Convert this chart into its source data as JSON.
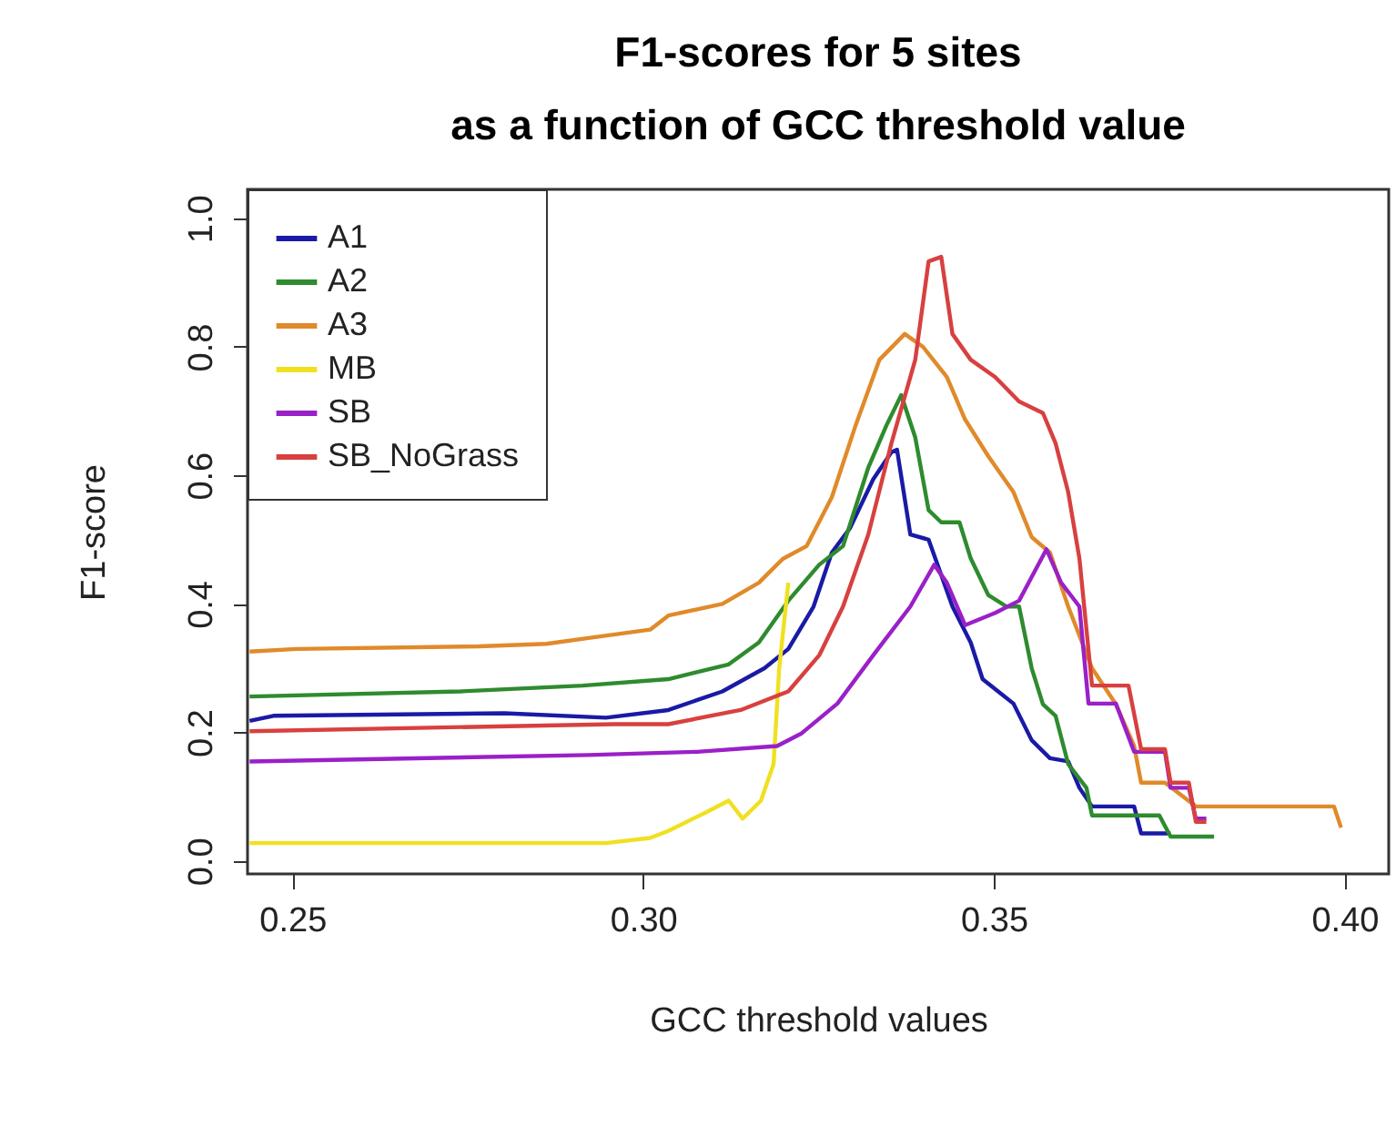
{
  "chart_data": {
    "type": "line",
    "title": "F1-scores for 5 sites\nas a function of GCC threshold value",
    "xlabel": "GCC threshold values",
    "ylabel": "F1-score",
    "xlim": [
      0.2436,
      0.4063
    ],
    "ylim": [
      -0.02,
      1.045
    ],
    "xticks": [
      0.25,
      {
        "value": 0.3,
        "label": "0.30"
      },
      0.35,
      {
        "value": 0.4,
        "label": "0.40"
      }
    ],
    "yticks": [
      {
        "value": 0,
        "label": "0.0"
      },
      0.2,
      0.4,
      0.6,
      0.8,
      {
        "value": 1,
        "label": "1.0"
      }
    ],
    "grid": false,
    "legend": "top left",
    "line_style": "solid",
    "marker": "none",
    "series": [
      {
        "name": "A1",
        "color": "#1a1aa6",
        "x": [
          0.2439,
          0.2473,
          0.2802,
          0.2947,
          0.3036,
          0.3113,
          0.3173,
          0.3207,
          0.3243,
          0.3269,
          0.3295,
          0.3328,
          0.3354,
          0.3362,
          0.3381,
          0.3407,
          0.3441,
          0.3467,
          0.3484,
          0.3528,
          0.3554,
          0.358,
          0.3606,
          0.3622,
          0.364,
          0.37,
          0.371,
          0.3752
        ],
        "values": [
          0.218,
          0.226,
          0.23,
          0.223,
          0.235,
          0.264,
          0.3,
          0.33,
          0.396,
          0.48,
          0.518,
          0.594,
          0.636,
          0.64,
          0.508,
          0.5,
          0.396,
          0.34,
          0.283,
          0.245,
          0.188,
          0.16,
          0.155,
          0.114,
          0.085,
          0.085,
          0.043,
          0.043
        ]
      },
      {
        "name": "A2",
        "color": "#2e8b2e",
        "x": [
          0.2439,
          0.274,
          0.2914,
          0.3036,
          0.3122,
          0.3165,
          0.3207,
          0.3251,
          0.3285,
          0.3321,
          0.3347,
          0.3368,
          0.3388,
          0.3407,
          0.3425,
          0.3451,
          0.3467,
          0.3492,
          0.3518,
          0.3536,
          0.3554,
          0.357,
          0.3588,
          0.3606,
          0.3632,
          0.364,
          0.3736,
          0.3752,
          0.3814
        ],
        "values": [
          0.256,
          0.264,
          0.273,
          0.283,
          0.306,
          0.34,
          0.405,
          0.461,
          0.49,
          0.612,
          0.678,
          0.725,
          0.659,
          0.546,
          0.527,
          0.527,
          0.471,
          0.414,
          0.396,
          0.396,
          0.3,
          0.244,
          0.226,
          0.151,
          0.114,
          0.071,
          0.071,
          0.038,
          0.038
        ]
      },
      {
        "name": "A3",
        "color": "#e08a2a",
        "x": [
          0.2439,
          0.2506,
          0.2766,
          0.2862,
          0.2922,
          0.301,
          0.3036,
          0.3113,
          0.3165,
          0.3199,
          0.3233,
          0.3269,
          0.3303,
          0.3337,
          0.3373,
          0.3399,
          0.3433,
          0.3459,
          0.3492,
          0.3528,
          0.3554,
          0.358,
          0.3606,
          0.364,
          0.3674,
          0.37,
          0.371,
          0.3744,
          0.3788,
          0.3985,
          0.3995
        ],
        "values": [
          0.326,
          0.33,
          0.334,
          0.338,
          0.347,
          0.36,
          0.382,
          0.4,
          0.433,
          0.47,
          0.49,
          0.566,
          0.678,
          0.78,
          0.82,
          0.8,
          0.753,
          0.687,
          0.63,
          0.574,
          0.504,
          0.48,
          0.396,
          0.3,
          0.244,
          0.179,
          0.122,
          0.122,
          0.085,
          0.085,
          0.052
        ]
      },
      {
        "name": "MB",
        "color": "#f0e020",
        "x": [
          0.2439,
          0.2947,
          0.301,
          0.3036,
          0.3088,
          0.3122,
          0.3142,
          0.3168,
          0.3186,
          0.3194,
          0.3207
        ],
        "values": [
          0.028,
          0.028,
          0.036,
          0.047,
          0.075,
          0.094,
          0.066,
          0.094,
          0.151,
          0.3,
          0.433
        ]
      },
      {
        "name": "SB",
        "color": "#9a20c8",
        "x": [
          0.2439,
          0.2922,
          0.3077,
          0.3191,
          0.3225,
          0.3277,
          0.3328,
          0.3381,
          0.3415,
          0.3433,
          0.3459,
          0.3502,
          0.3536,
          0.3554,
          0.3575,
          0.3596,
          0.3622,
          0.3635,
          0.3674,
          0.37,
          0.3744,
          0.3752,
          0.3778,
          0.3788,
          0.3803
        ],
        "values": [
          0.155,
          0.165,
          0.17,
          0.179,
          0.198,
          0.245,
          0.32,
          0.396,
          0.461,
          0.433,
          0.367,
          0.386,
          0.405,
          0.442,
          0.485,
          0.433,
          0.396,
          0.245,
          0.245,
          0.17,
          0.17,
          0.114,
          0.114,
          0.066,
          0.066
        ]
      },
      {
        "name": "SB_NoGrass",
        "color": "#d84040",
        "x": [
          0.2439,
          0.2958,
          0.3036,
          0.3139,
          0.3207,
          0.3251,
          0.3285,
          0.3321,
          0.3354,
          0.3388,
          0.3407,
          0.3425,
          0.3441,
          0.3467,
          0.3502,
          0.3536,
          0.357,
          0.3588,
          0.3606,
          0.3622,
          0.364,
          0.3692,
          0.371,
          0.3744,
          0.3752,
          0.3778,
          0.3788,
          0.3803
        ],
        "values": [
          0.202,
          0.213,
          0.213,
          0.235,
          0.264,
          0.32,
          0.396,
          0.508,
          0.65,
          0.78,
          0.933,
          0.94,
          0.82,
          0.78,
          0.753,
          0.715,
          0.697,
          0.65,
          0.574,
          0.471,
          0.273,
          0.273,
          0.174,
          0.174,
          0.122,
          0.122,
          0.061,
          0.061
        ]
      }
    ]
  }
}
